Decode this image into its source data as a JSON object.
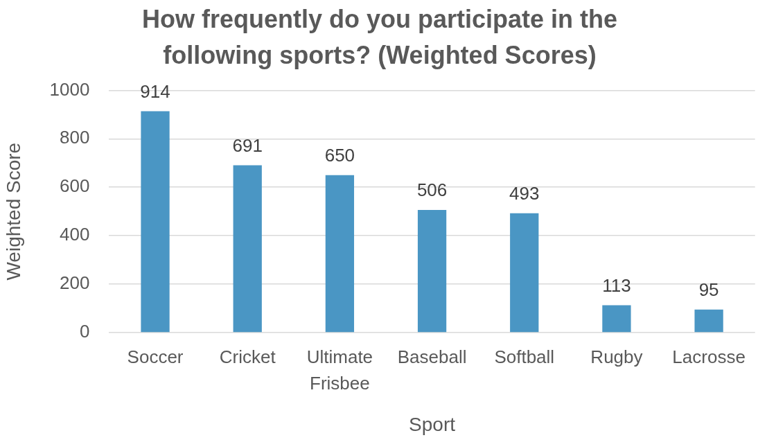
{
  "chart_data": {
    "type": "bar",
    "title": "How frequently do you participate in the following sports? (Weighted Scores)",
    "xlabel": "Sport",
    "ylabel": "Weighted Score",
    "categories": [
      "Soccer",
      "Cricket",
      "Ultimate Frisbee",
      "Baseball",
      "Softball",
      "Rugby",
      "Lacrosse"
    ],
    "values": [
      914,
      691,
      650,
      506,
      493,
      113,
      95
    ],
    "color": "#4a96c4",
    "ylim": [
      0,
      1000
    ],
    "yticks": [
      0,
      200,
      400,
      600,
      800,
      1000
    ],
    "grid": "y",
    "data_labels": true
  }
}
